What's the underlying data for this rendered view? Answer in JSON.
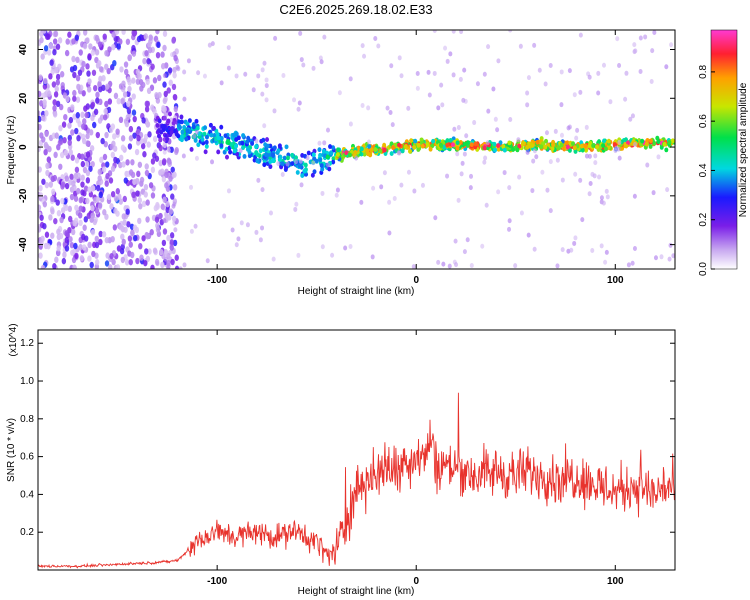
{
  "title": "C2E6.2025.269.18.02.E33",
  "chart_data": [
    {
      "type": "heatmap",
      "title": "C2E6.2025.269.18.02.E33",
      "xlabel": "Height of straight line (km)",
      "ylabel": "Frequency (Hz)",
      "xlim": [
        -190,
        130
      ],
      "ylim": [
        -50,
        48
      ],
      "xticks": [
        "-100",
        "0",
        "100"
      ],
      "yticks": [
        "40",
        "20",
        "0",
        "-20",
        "-40"
      ],
      "colorbar": {
        "label": "Normalized spectral amplitude",
        "range": [
          0.0,
          0.97
        ],
        "ticks": [
          "0.8",
          "0.6",
          "0.4",
          "0.2",
          "0.0"
        ]
      },
      "ridge_x": [
        -145,
        -130,
        -115,
        -100,
        -90,
        -80,
        -70,
        -60,
        -55,
        -50,
        -40,
        -30,
        -20,
        -10,
        0,
        20,
        40,
        60,
        80,
        100,
        120,
        130
      ],
      "ridge_frequency": [
        7,
        8,
        6,
        3,
        1,
        -2,
        -4,
        -6,
        -8,
        -5,
        -3,
        -2,
        -1,
        0,
        1,
        1,
        0,
        1,
        0,
        1,
        2,
        1
      ]
    },
    {
      "type": "line",
      "xlabel": "Height of straight line (km)",
      "ylabel": "SNR (10 * v/v)",
      "y_multiplier": "(x10^4)",
      "xlim": [
        -190,
        130
      ],
      "ylim": [
        0,
        1.27
      ],
      "xticks": [
        "-100",
        "0",
        "100"
      ],
      "yticks": [
        "1.2",
        "1.0",
        "0.8",
        "0.6",
        "0.4",
        "0.2"
      ],
      "series": [
        {
          "name": "SNR",
          "color": "#e8332d",
          "x": [
            -190,
            -170,
            -150,
            -130,
            -120,
            -110,
            -100,
            -90,
            -80,
            -70,
            -60,
            -50,
            -45,
            -40,
            -35,
            -30,
            -20,
            -10,
            0,
            5,
            8,
            10,
            20,
            30,
            40,
            50,
            60,
            70,
            80,
            90,
            100,
            110,
            120,
            125,
            130
          ],
          "values": [
            0.02,
            0.02,
            0.03,
            0.04,
            0.05,
            0.15,
            0.2,
            0.18,
            0.2,
            0.18,
            0.2,
            0.15,
            0.08,
            0.1,
            0.25,
            0.45,
            0.5,
            0.55,
            0.6,
            0.62,
            0.7,
            0.55,
            0.55,
            0.5,
            0.52,
            0.5,
            0.52,
            0.48,
            0.5,
            0.45,
            0.42,
            0.45,
            0.4,
            0.45,
            0.42
          ]
        }
      ]
    }
  ]
}
